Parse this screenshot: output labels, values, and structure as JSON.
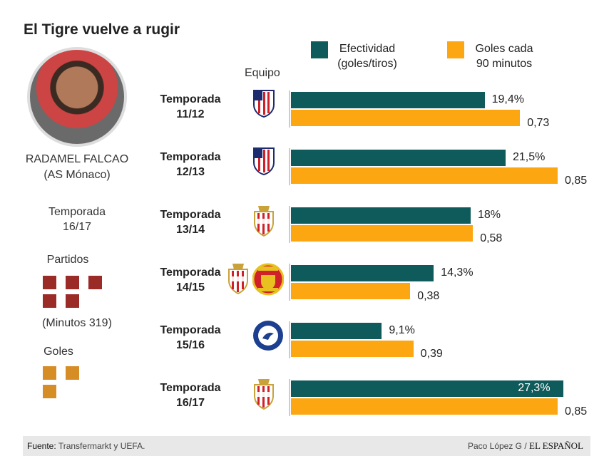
{
  "title": "El Tigre vuelve a rugir",
  "player": {
    "name": "RADAMEL FALCAO",
    "club": "(AS Mónaco)",
    "season_label": "Temporada",
    "season": "16/17",
    "partidos_label": "Partidos",
    "partidos": 5,
    "minutos": "(Minutos 319)",
    "goles_label": "Goles",
    "goles": 3,
    "partidos_color": "#9b2b27",
    "goles_color": "#d68d26"
  },
  "equipo_header": "Equipo",
  "chart_data": {
    "type": "bar",
    "orientation": "horizontal",
    "categories": [
      "Temporada 11/12",
      "Temporada 12/13",
      "Temporada 13/14",
      "Temporada 14/15",
      "Temporada 15/16",
      "Temporada 16/17"
    ],
    "category_lines": [
      [
        "Temporada",
        "11/12"
      ],
      [
        "Temporada",
        "12/13"
      ],
      [
        "Temporada",
        "13/14"
      ],
      [
        "Temporada",
        "14/15"
      ],
      [
        "Temporada",
        "15/16"
      ],
      [
        "Temporada",
        "16/17"
      ]
    ],
    "team_logos": [
      [
        "atletico-madrid"
      ],
      [
        "atletico-madrid"
      ],
      [
        "as-monaco"
      ],
      [
        "as-monaco",
        "manchester-united"
      ],
      [
        "chelsea"
      ],
      [
        "as-monaco"
      ]
    ],
    "series": [
      {
        "name": "Efectividad (goles/tiros)",
        "legend_lines": [
          "Efectividad",
          "(goles/tiros)"
        ],
        "color": "#0f5a5a",
        "values": [
          19.4,
          21.5,
          18,
          14.3,
          9.1,
          27.3
        ],
        "labels": [
          "19,4%",
          "21,5%",
          "18%",
          "14,3%",
          "9,1%",
          "27,3%"
        ]
      },
      {
        "name": "Goles cada 90 minutos",
        "legend_lines": [
          "Goles cada",
          "90 minutos"
        ],
        "color": "#fca711",
        "values": [
          0.73,
          0.85,
          0.58,
          0.38,
          0.39,
          0.85
        ],
        "labels": [
          "0,73",
          "0,85",
          "0,58",
          "0,38",
          "0,39",
          "0,85"
        ]
      }
    ],
    "legend": "top-right",
    "grid": false
  },
  "footer": {
    "source_label": "Fuente:",
    "source": "Transfermarkt y UEFA.",
    "credit": "Paco López G  /",
    "brand": "EL ESPAÑOL"
  }
}
